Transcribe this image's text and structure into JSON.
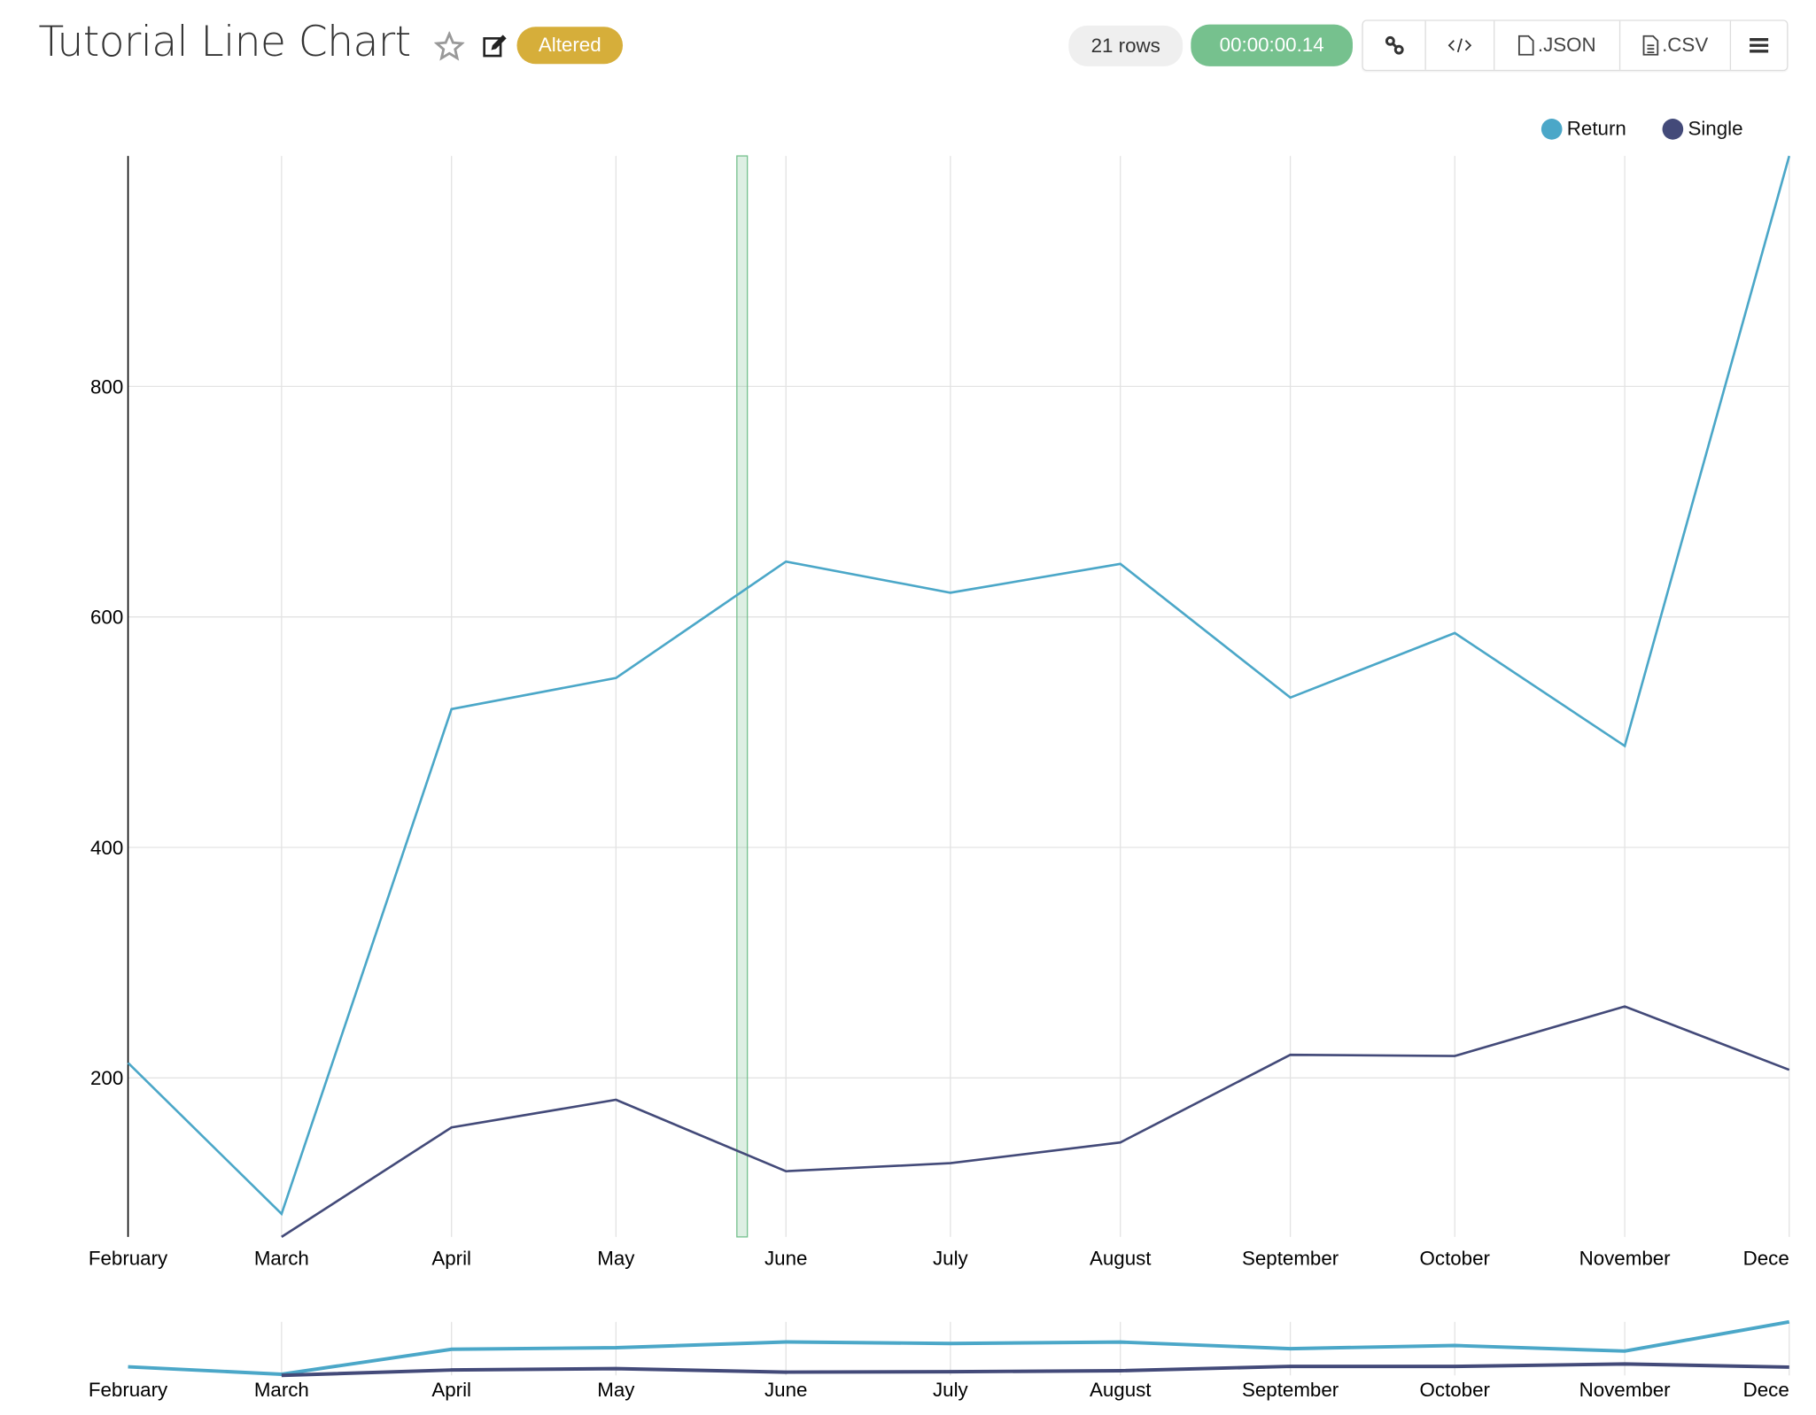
{
  "header": {
    "title": "Tutorial Line Chart",
    "star_icon": "star-icon",
    "edit_icon": "edit-icon",
    "status_badge": "Altered",
    "rows_badge": "21 rows",
    "timer_badge": "00:00:00.14",
    "buttons": {
      "link_icon": "link-icon",
      "code_icon": "code-icon",
      "json_label": ".JSON",
      "csv_label": ".CSV",
      "menu_icon": "menu-icon"
    }
  },
  "colors": {
    "return": "#4ba7c8",
    "single": "#434a79",
    "altered": "#d6ae3a",
    "timer": "#76c18e",
    "brush": "#76c18e"
  },
  "legend": [
    {
      "name": "Return",
      "color": "#4ba7c8"
    },
    {
      "name": "Single",
      "color": "#434a79"
    }
  ],
  "chart_data": {
    "type": "line",
    "x": [
      "February",
      "March",
      "April",
      "May",
      "June",
      "July",
      "August",
      "September",
      "October",
      "November",
      "December"
    ],
    "x_tick_labels": [
      "February",
      "March",
      "April",
      "May",
      "June",
      "July",
      "August",
      "September",
      "October",
      "November",
      "Dece"
    ],
    "y_ticks": [
      "200",
      "400",
      "600",
      "800"
    ],
    "ylim": [
      62,
      1000
    ],
    "grid": true,
    "legend_position": "top-right",
    "series": [
      {
        "name": "Return",
        "values": [
          213,
          82,
          520,
          547,
          648,
          621,
          646,
          530,
          586,
          488,
          1000
        ]
      },
      {
        "name": "Single",
        "values": [
          null,
          62,
          157,
          181,
          119,
          126,
          144,
          220,
          219,
          262,
          207
        ]
      }
    ],
    "has_overview_chart": true
  }
}
